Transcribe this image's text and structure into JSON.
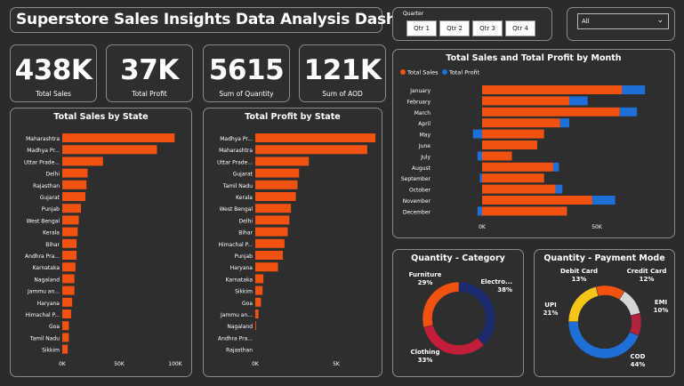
{
  "title": "Superstore Sales Insights Data Analysis Dashboard",
  "quarter_slicer": {
    "label": "Quarter",
    "buttons": [
      "Qtr 1",
      "Qtr 2",
      "Qtr 3",
      "Qtr 4"
    ]
  },
  "dropdown": {
    "selected": "All"
  },
  "kpis": [
    {
      "value": "438K",
      "label": "Total Sales"
    },
    {
      "value": "37K",
      "label": "Total Profit"
    },
    {
      "value": "5615",
      "label": "Sum of Quantity"
    },
    {
      "value": "121K",
      "label": "Sum of AOD"
    }
  ],
  "colors": {
    "orange": "#f2510f",
    "blue": "#1f6fd8",
    "navy": "#1c2a6e",
    "red": "#c21d3a",
    "yellow": "#f5c518",
    "lightgray": "#d6d6d6",
    "maroon": "#b0243e"
  },
  "chart_data": [
    {
      "type": "bar",
      "title": "Total Sales by State",
      "categories": [
        "Maharashtra",
        "Madhya Pr...",
        "Uttar Prade...",
        "Delhi",
        "Rajasthan",
        "Gujarat",
        "Punjab",
        "West Bengal",
        "Kerala",
        "Bihar",
        "Andhra Pra...",
        "Karnataka",
        "Nagaland",
        "Jammu an...",
        "Haryana",
        "Himachal P...",
        "Goa",
        "Tamil Nadu",
        "Sikkim"
      ],
      "values": [
        102000,
        86000,
        37000,
        23000,
        22000,
        21000,
        17000,
        15000,
        14000,
        13000,
        13000,
        12000,
        11000,
        11000,
        9000,
        8000,
        6000,
        6000,
        5000
      ],
      "xticks": [
        "0K",
        "50K",
        "100K"
      ],
      "xlim": [
        0,
        105000
      ]
    },
    {
      "type": "bar",
      "title": "Total Profit by State",
      "categories": [
        "Madhya Pr...",
        "Maharashtra",
        "Uttar Prade...",
        "Gujarat",
        "Tamil Nadu",
        "Kerala",
        "West Bengal",
        "Delhi",
        "Bihar",
        "Himachal P...",
        "Punjab",
        "Haryana",
        "Karnataka",
        "Sikkim",
        "Goa",
        "Jammu an...",
        "Nagaland",
        "Andhra Pra...",
        "Rajasthan"
      ],
      "values": [
        7400,
        6900,
        3300,
        2700,
        2600,
        2500,
        2200,
        2100,
        2000,
        1800,
        1700,
        1400,
        500,
        450,
        350,
        200,
        50,
        0,
        0
      ],
      "xticks": [
        "0K",
        "5K"
      ],
      "xlim": [
        0,
        8000
      ]
    },
    {
      "type": "bar",
      "title": "Total Sales and Total Profit by Month",
      "legend": [
        "Total Sales",
        "Total Profit"
      ],
      "categories": [
        "January",
        "February",
        "March",
        "April",
        "May",
        "June",
        "July",
        "August",
        "September",
        "October",
        "November",
        "December"
      ],
      "series": [
        {
          "name": "Total Sales",
          "values": [
            61000,
            38000,
            60000,
            34000,
            27000,
            24000,
            13000,
            31000,
            27000,
            32000,
            48000,
            37000
          ]
        },
        {
          "name": "Total Profit",
          "values": [
            10000,
            8000,
            7500,
            4000,
            -4000,
            0,
            -2000,
            2500,
            -1000,
            3000,
            10000,
            -2000
          ]
        }
      ],
      "xticks": [
        "0K",
        "50K"
      ]
    },
    {
      "type": "pie",
      "title": "Quantity - Category",
      "labels": [
        "Electro...",
        "Clothing",
        "Furniture"
      ],
      "values": [
        38,
        33,
        29
      ],
      "display": [
        "38%",
        "33%",
        "29%"
      ]
    },
    {
      "type": "pie",
      "title": "Quantity - Payment Mode",
      "labels": [
        "COD",
        "UPI",
        "Debit Card",
        "Credit Card",
        "EMI"
      ],
      "values": [
        44,
        21,
        13,
        12,
        10
      ],
      "display": [
        "44%",
        "21%",
        "13%",
        "12%",
        "10%"
      ]
    }
  ]
}
